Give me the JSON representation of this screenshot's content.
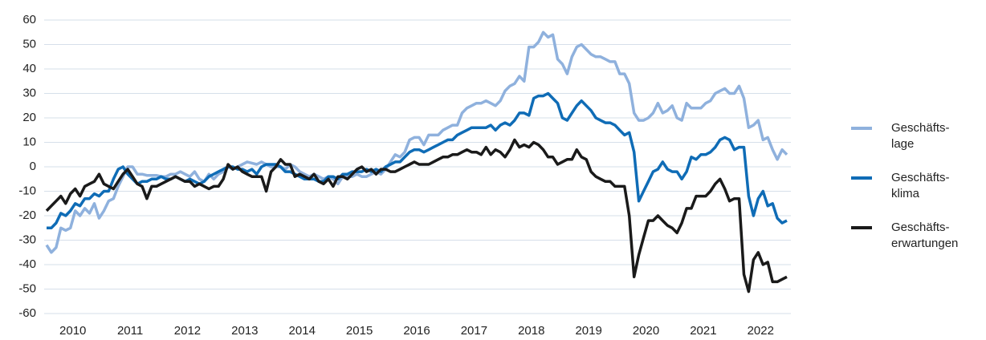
{
  "chart_data": {
    "type": "line",
    "categories": [
      "2010",
      null,
      null,
      null,
      null,
      null,
      null,
      null,
      null,
      null,
      null,
      null,
      "2011",
      null,
      null,
      null,
      null,
      null,
      null,
      null,
      null,
      null,
      null,
      null,
      "2012",
      null,
      null,
      null,
      null,
      null,
      null,
      null,
      null,
      null,
      null,
      null,
      "2013",
      null,
      null,
      null,
      null,
      null,
      null,
      null,
      null,
      null,
      null,
      null,
      "2014",
      null,
      null,
      null,
      null,
      null,
      null,
      null,
      null,
      null,
      null,
      null,
      "2015",
      null,
      null,
      null,
      null,
      null,
      null,
      null,
      null,
      null,
      null,
      null,
      "2016",
      null,
      null,
      null,
      null,
      null,
      null,
      null,
      null,
      null,
      null,
      null,
      "2017",
      null,
      null,
      null,
      null,
      null,
      null,
      null,
      null,
      null,
      null,
      null,
      "2018",
      null,
      null,
      null,
      null,
      null,
      null,
      null,
      null,
      null,
      null,
      null,
      "2019",
      null,
      null,
      null,
      null,
      null,
      null,
      null,
      null,
      null,
      null,
      null,
      "2020",
      null,
      null,
      null,
      null,
      null,
      null,
      null,
      null,
      null,
      null,
      null,
      "2021",
      null,
      null,
      null,
      null,
      null,
      null,
      null,
      null,
      null,
      null,
      null,
      "2022",
      null,
      null,
      null,
      null,
      null,
      null,
      null,
      null,
      null,
      null,
      null
    ],
    "series": [
      {
        "name": "Geschäfts-\nlage",
        "color": "#8fb1dd",
        "values": [
          -32,
          -35,
          -33,
          -25,
          -26,
          -25,
          -18,
          -20,
          -17,
          -19,
          -15,
          -21,
          -18,
          -14,
          -13,
          -8,
          -4,
          0,
          0,
          -3,
          -3,
          -3.5,
          -3.5,
          -3.5,
          -4,
          -4,
          -3,
          -3,
          -2,
          -3,
          -4,
          -2,
          -5,
          -6,
          -3,
          -5,
          -3,
          -2,
          0,
          -1,
          0,
          1,
          2,
          1.5,
          1,
          2,
          1,
          0,
          0,
          0,
          -1,
          1,
          0,
          -2,
          -3,
          -4,
          -3,
          -4,
          -5,
          -4,
          -5,
          -7,
          -4,
          -4,
          -4,
          -3,
          -4,
          -4,
          -3,
          -2,
          -3,
          -1,
          2,
          5,
          4,
          6,
          11,
          12,
          12,
          9,
          13,
          13,
          13,
          15,
          16,
          17,
          17,
          22,
          24,
          25,
          26,
          26,
          27,
          26,
          25,
          27,
          31,
          33,
          34,
          37,
          35,
          49,
          49,
          51,
          55,
          53,
          54,
          44,
          42,
          38,
          45,
          49,
          50,
          48,
          46,
          45,
          45,
          44,
          43,
          43,
          38,
          38,
          34,
          22,
          19,
          19,
          20,
          22,
          26,
          22,
          23,
          25,
          20,
          19,
          26,
          24,
          24,
          24,
          26,
          27,
          30,
          31,
          32,
          30,
          30,
          33,
          28,
          16,
          17,
          19,
          11,
          12,
          7,
          3,
          7,
          5
        ]
      },
      {
        "name": "Geschäfts-\nklima",
        "color": "#0f6cb6",
        "values": [
          -25,
          -25,
          -23,
          -19,
          -20,
          -18,
          -15,
          -16,
          -13,
          -13,
          -11,
          -12,
          -10,
          -10,
          -5,
          -1,
          0,
          -3,
          -5,
          -7,
          -6,
          -6,
          -5,
          -5,
          -4,
          -5,
          -5,
          -4,
          -5,
          -6,
          -5,
          -6,
          -7,
          -6,
          -4,
          -3,
          -2,
          -1,
          0,
          0,
          -1,
          -1,
          -2,
          -1,
          -3,
          0,
          1,
          1,
          1,
          0,
          -2,
          -2,
          -3,
          -4,
          -5,
          -5,
          -5,
          -6,
          -6,
          -4,
          -4,
          -5,
          -3,
          -3,
          -2,
          -2,
          -2,
          -1,
          -2,
          -1,
          -2,
          0,
          1,
          2,
          2,
          4,
          6,
          7,
          7,
          6,
          7,
          8,
          9,
          10,
          11,
          11,
          13,
          14,
          15,
          16,
          16,
          16,
          16,
          17,
          15,
          17,
          18,
          17,
          19,
          22,
          22,
          21,
          28,
          29,
          29,
          30,
          28,
          26,
          20,
          19,
          22,
          25,
          27,
          25,
          23,
          20,
          19,
          18,
          18,
          17,
          15,
          13,
          14,
          6,
          -14,
          -10,
          -6,
          -2,
          -1,
          2,
          -1,
          -2,
          -2,
          -5,
          -2,
          4,
          3,
          5,
          5,
          6,
          8,
          11,
          12,
          11,
          7,
          8,
          8,
          -12,
          -20,
          -13,
          -10,
          -16,
          -15,
          -21,
          -23,
          -22
        ]
      },
      {
        "name": "Geschäfts-\nerwartungen",
        "color": "#1a1a1a",
        "values": [
          -18,
          -16,
          -14,
          -12,
          -15,
          -11,
          -9,
          -12,
          -8,
          -7,
          -6,
          -3,
          -7,
          -8,
          -9,
          -6,
          -3,
          -1,
          -4,
          -7,
          -8,
          -13,
          -8,
          -8,
          -7,
          -6,
          -5,
          -4,
          -5,
          -6,
          -6,
          -8,
          -7,
          -8,
          -9,
          -8,
          -8,
          -5,
          1,
          -1,
          0,
          -2,
          -3,
          -4,
          -4,
          -4,
          -10,
          -2,
          0,
          3,
          1,
          1,
          -4,
          -3,
          -4,
          -5,
          -3,
          -6,
          -7,
          -5,
          -8,
          -4,
          -4,
          -5,
          -3,
          -1,
          0,
          -2,
          -1,
          -3,
          -1,
          -1,
          -2,
          -2,
          -1,
          0,
          1,
          2,
          1,
          1,
          1,
          2,
          3,
          4,
          4,
          5,
          5,
          6,
          7,
          6,
          6,
          5,
          8,
          5,
          7,
          6,
          4,
          7,
          11,
          8,
          9,
          8,
          10,
          9,
          7,
          4,
          4,
          1,
          2,
          3,
          3,
          7,
          4,
          3,
          -2,
          -4,
          -5,
          -6,
          -6,
          -8,
          -8,
          -8,
          -20,
          -45,
          -36,
          -29,
          -22,
          -22,
          -20,
          -22,
          -24,
          -25,
          -27,
          -23,
          -17,
          -17,
          -12,
          -12,
          -12,
          -10,
          -7,
          -5,
          -9,
          -14,
          -13,
          -13,
          -44,
          -51,
          -38,
          -35,
          -40,
          -39,
          -47,
          -47,
          -46,
          -45
        ]
      }
    ],
    "ylim": [
      -60,
      60
    ],
    "yticks": [
      -60,
      -50,
      -40,
      -30,
      -20,
      -10,
      0,
      10,
      20,
      30,
      40,
      50,
      60
    ],
    "grid": true,
    "legend": "right"
  }
}
